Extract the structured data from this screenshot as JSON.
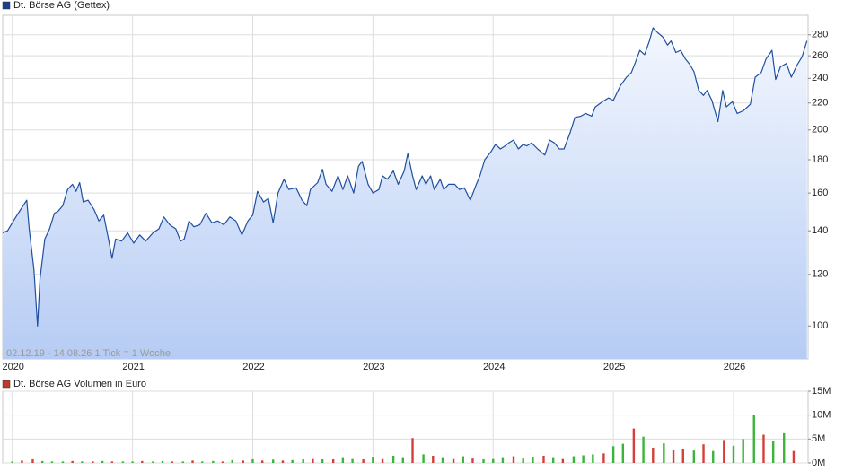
{
  "chart_data": [
    {
      "type": "line",
      "legend": "Dt. Börse AG (Gettex)",
      "note": "02.12.19 - 14.08.26   1 Tick = 1 Woche",
      "color": "#1f4f9f",
      "swatch_color": "#1c3f8c",
      "log_scale": true,
      "grid": true,
      "xlim": [
        2019.92,
        2026.62
      ],
      "xticks": [
        2020,
        2021,
        2022,
        2023,
        2024,
        2025,
        2026
      ],
      "ylim": [
        89,
        300
      ],
      "yticks": [
        100,
        120,
        140,
        160,
        180,
        200,
        220,
        240,
        260,
        280
      ],
      "x": [
        2019.92,
        2019.96,
        2020.01,
        2020.06,
        2020.12,
        2020.14,
        2020.18,
        2020.21,
        2020.23,
        2020.27,
        2020.31,
        2020.35,
        2020.38,
        2020.42,
        2020.46,
        2020.5,
        2020.53,
        2020.56,
        2020.59,
        2020.63,
        2020.68,
        2020.72,
        2020.76,
        2020.8,
        2020.83,
        2020.86,
        2020.91,
        2020.96,
        2021.01,
        2021.06,
        2021.11,
        2021.17,
        2021.22,
        2021.26,
        2021.31,
        2021.36,
        2021.4,
        2021.43,
        2021.47,
        2021.51,
        2021.56,
        2021.61,
        2021.66,
        2021.71,
        2021.76,
        2021.81,
        2021.86,
        2021.91,
        2021.96,
        2022.0,
        2022.04,
        2022.09,
        2022.13,
        2022.17,
        2022.21,
        2022.26,
        2022.3,
        2022.36,
        2022.41,
        2022.45,
        2022.48,
        2022.54,
        2022.58,
        2022.61,
        2022.66,
        2022.71,
        2022.75,
        2022.79,
        2022.84,
        2022.88,
        2022.91,
        2022.96,
        2023.0,
        2023.05,
        2023.08,
        2023.12,
        2023.17,
        2023.21,
        2023.26,
        2023.29,
        2023.33,
        2023.36,
        2023.41,
        2023.44,
        2023.48,
        2023.51,
        2023.56,
        2023.59,
        2023.63,
        2023.68,
        2023.72,
        2023.76,
        2023.81,
        2023.86,
        2023.89,
        2023.93,
        2023.98,
        2024.02,
        2024.06,
        2024.1,
        2024.13,
        2024.17,
        2024.21,
        2024.25,
        2024.28,
        2024.32,
        2024.37,
        2024.4,
        2024.43,
        2024.47,
        2024.51,
        2024.55,
        2024.59,
        2024.64,
        2024.68,
        2024.73,
        2024.77,
        2024.82,
        2024.85,
        2024.91,
        2024.96,
        2025.0,
        2025.06,
        2025.11,
        2025.15,
        2025.18,
        2025.22,
        2025.26,
        2025.3,
        2025.33,
        2025.37,
        2025.41,
        2025.45,
        2025.48,
        2025.52,
        2025.56,
        2025.6,
        2025.63,
        2025.67,
        2025.71,
        2025.75,
        2025.78,
        2025.82,
        2025.87,
        2025.91,
        2025.94,
        2025.99,
        2026.03,
        2026.08,
        2026.14,
        2026.18,
        2026.23,
        2026.27,
        2026.32,
        2026.35,
        2026.39,
        2026.44,
        2026.48,
        2026.53,
        2026.57,
        2026.61
      ],
      "values": [
        139,
        140,
        145,
        150,
        156,
        141,
        122,
        100,
        118,
        136,
        141,
        149,
        150,
        153,
        162,
        165,
        161,
        166,
        155,
        156,
        151,
        145,
        148,
        136,
        127,
        136,
        135,
        139,
        134,
        138,
        135,
        139,
        141,
        147,
        143,
        141,
        135,
        136,
        145,
        142,
        143,
        149,
        144,
        145,
        143,
        147,
        145,
        138,
        145,
        148,
        161,
        155,
        157,
        144,
        160,
        168,
        162,
        163,
        156,
        153,
        162,
        166,
        174,
        165,
        161,
        170,
        162,
        170,
        160,
        176,
        179,
        165,
        160,
        162,
        170,
        168,
        173,
        165,
        173,
        184,
        170,
        162,
        170,
        165,
        170,
        162,
        168,
        162,
        165,
        165,
        162,
        163,
        156,
        165,
        170,
        180,
        185,
        190,
        187,
        189,
        191,
        193,
        187,
        190,
        189,
        191,
        187,
        185,
        183,
        193,
        191,
        187,
        187,
        198,
        209,
        210,
        212,
        210,
        217,
        221,
        224,
        222,
        234,
        241,
        245,
        253,
        265,
        261,
        274,
        287,
        282,
        278,
        270,
        274,
        263,
        265,
        257,
        253,
        246,
        230,
        226,
        230,
        222,
        206,
        230,
        217,
        221,
        212,
        214,
        219,
        241,
        245,
        257,
        265,
        239,
        250,
        253,
        241,
        252,
        259,
        274
      ]
    },
    {
      "type": "bar",
      "legend": "Dt. Börse AG Volumen in Euro",
      "swatch_color": "#c0392b",
      "grid": true,
      "xlim": [
        2019.92,
        2026.62
      ],
      "ylim": [
        0,
        15000000
      ],
      "yticks": [
        {
          "value": 0,
          "label": "0M"
        },
        {
          "value": 5000000,
          "label": "5M"
        },
        {
          "value": 10000000,
          "label": "10M"
        },
        {
          "value": 15000000,
          "label": "15M"
        }
      ],
      "x": [
        2020.0,
        2020.08,
        2020.17,
        2020.25,
        2020.33,
        2020.42,
        2020.5,
        2020.58,
        2020.67,
        2020.75,
        2020.83,
        2020.92,
        2021.0,
        2021.08,
        2021.17,
        2021.25,
        2021.33,
        2021.42,
        2021.5,
        2021.58,
        2021.67,
        2021.75,
        2021.83,
        2021.92,
        2022.0,
        2022.08,
        2022.17,
        2022.25,
        2022.33,
        2022.42,
        2022.5,
        2022.58,
        2022.67,
        2022.75,
        2022.83,
        2022.92,
        2023.0,
        2023.08,
        2023.17,
        2023.25,
        2023.33,
        2023.42,
        2023.5,
        2023.58,
        2023.67,
        2023.75,
        2023.83,
        2023.92,
        2024.0,
        2024.08,
        2024.17,
        2024.25,
        2024.33,
        2024.42,
        2024.5,
        2024.58,
        2024.67,
        2024.75,
        2024.83,
        2024.92,
        2025.0,
        2025.08,
        2025.17,
        2025.25,
        2025.33,
        2025.42,
        2025.5,
        2025.58,
        2025.67,
        2025.75,
        2025.83,
        2025.92,
        2026.0,
        2026.08,
        2026.17,
        2026.25,
        2026.33,
        2026.42,
        2026.5
      ],
      "values": [
        300000,
        500000,
        800000,
        400000,
        300000,
        300000,
        400000,
        300000,
        300000,
        400000,
        300000,
        300000,
        300000,
        400000,
        300000,
        400000,
        300000,
        300000,
        500000,
        300000,
        400000,
        300000,
        600000,
        500000,
        800000,
        500000,
        700000,
        500000,
        600000,
        800000,
        1000000,
        900000,
        800000,
        1200000,
        1000000,
        900000,
        1300000,
        1000000,
        1500000,
        1200000,
        5200000,
        1800000,
        1500000,
        1200000,
        1000000,
        1400000,
        1100000,
        900000,
        1000000,
        1200000,
        1400000,
        1100000,
        1300000,
        1500000,
        1200000,
        1000000,
        1400000,
        1600000,
        1800000,
        2000000,
        3500000,
        4000000,
        7200000,
        5500000,
        3200000,
        4100000,
        2800000,
        3000000,
        2600000,
        3900000,
        2500000,
        4800000,
        3600000,
        5000000,
        10000000,
        5900000,
        4500000,
        6400000,
        2500000
      ],
      "colors": [
        "#3cb43c",
        "#d43f3a",
        "#d43f3a",
        "#3cb43c",
        "#3cb43c",
        "#3cb43c",
        "#d43f3a",
        "#3cb43c",
        "#d43f3a",
        "#3cb43c",
        "#d43f3a",
        "#3cb43c",
        "#3cb43c",
        "#d43f3a",
        "#3cb43c",
        "#3cb43c",
        "#d43f3a",
        "#3cb43c",
        "#d43f3a",
        "#3cb43c",
        "#3cb43c",
        "#d43f3a",
        "#3cb43c",
        "#d43f3a",
        "#3cb43c",
        "#d43f3a",
        "#3cb43c",
        "#d43f3a",
        "#3cb43c",
        "#3cb43c",
        "#d43f3a",
        "#3cb43c",
        "#d43f3a",
        "#3cb43c",
        "#3cb43c",
        "#d43f3a",
        "#3cb43c",
        "#d43f3a",
        "#3cb43c",
        "#3cb43c",
        "#d43f3a",
        "#3cb43c",
        "#d43f3a",
        "#3cb43c",
        "#d43f3a",
        "#3cb43c",
        "#d43f3a",
        "#3cb43c",
        "#3cb43c",
        "#3cb43c",
        "#d43f3a",
        "#3cb43c",
        "#3cb43c",
        "#d43f3a",
        "#3cb43c",
        "#d43f3a",
        "#3cb43c",
        "#3cb43c",
        "#3cb43c",
        "#d43f3a",
        "#3cb43c",
        "#3cb43c",
        "#d43f3a",
        "#3cb43c",
        "#d43f3a",
        "#3cb43c",
        "#d43f3a",
        "#d43f3a",
        "#3cb43c",
        "#d43f3a",
        "#3cb43c",
        "#d43f3a",
        "#3cb43c",
        "#3cb43c",
        "#3cb43c",
        "#d43f3a",
        "#3cb43c",
        "#3cb43c",
        "#d43f3a"
      ]
    }
  ]
}
